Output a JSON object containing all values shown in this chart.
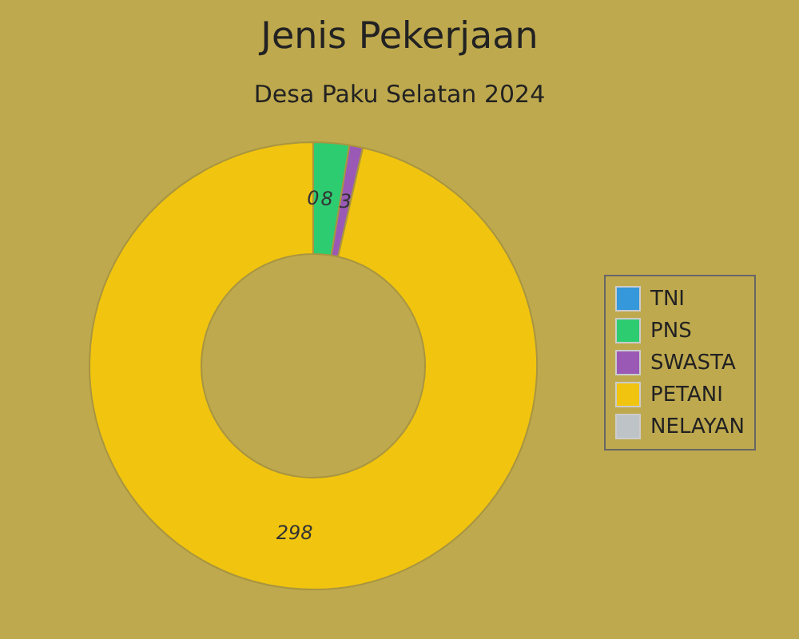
{
  "chart_data": {
    "type": "donut",
    "title": "Jenis Pekerjaan",
    "subtitle": "Desa Paku Selatan 2024",
    "categories": [
      "TNI",
      "PNS",
      "SWASTA",
      "PETANI",
      "NELAYAN"
    ],
    "values": [
      0,
      8,
      3,
      298,
      0
    ],
    "colors": [
      "#3498db",
      "#2ecc71",
      "#9b59b6",
      "#f1c40f",
      "#bdc3c7"
    ],
    "value_labels": [
      "0",
      "8",
      "3",
      "298",
      null
    ],
    "legend": "right"
  }
}
